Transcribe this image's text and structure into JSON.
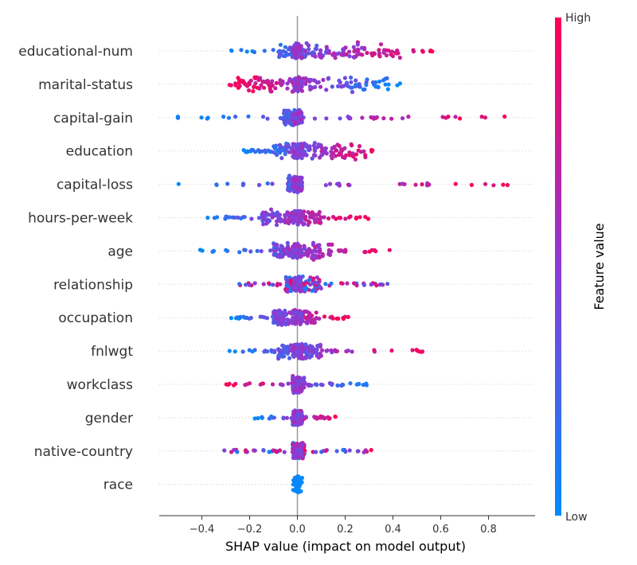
{
  "chart_data": {
    "type": "scatter",
    "subtype": "shap-beeswarm",
    "xlabel": "SHAP value (impact on model output)",
    "xlim": [
      -0.58,
      0.98
    ],
    "x_ticks": [
      "−0.4",
      "−0.2",
      "0.0",
      "0.2",
      "0.4",
      "0.6",
      "0.8"
    ],
    "x_tick_values": [
      -0.4,
      -0.2,
      0.0,
      0.2,
      0.4,
      0.6,
      0.8
    ],
    "grid": false,
    "colorbar": {
      "label": "Feature value",
      "high": "High",
      "low": "Low",
      "color_low": "#008bfb",
      "color_mid": "#8e3ad6",
      "color_high": "#ff0052"
    },
    "zero_line_color": "#999999",
    "features": [
      {
        "name": "educational-num",
        "x_min": -0.29,
        "x_max": 0.57,
        "dense_min": -0.08,
        "dense_max": 0.45,
        "pattern": "low-left"
      },
      {
        "name": "marital-status",
        "x_min": -0.29,
        "x_max": 0.44,
        "dense_min": -0.25,
        "dense_max": 0.38,
        "pattern": "high-left"
      },
      {
        "name": "capital-gain",
        "x_min": -0.52,
        "x_max": 0.91,
        "dense_min": -0.06,
        "dense_max": 0.02,
        "pattern": "low-left"
      },
      {
        "name": "education",
        "x_min": -0.23,
        "x_max": 0.36,
        "dense_min": -0.1,
        "dense_max": 0.3,
        "pattern": "low-left"
      },
      {
        "name": "capital-loss",
        "x_min": -0.52,
        "x_max": 0.91,
        "dense_min": -0.04,
        "dense_max": 0.02,
        "pattern": "low-left"
      },
      {
        "name": "hours-per-week",
        "x_min": -0.43,
        "x_max": 0.31,
        "dense_min": -0.15,
        "dense_max": 0.1,
        "pattern": "low-left"
      },
      {
        "name": "age",
        "x_min": -0.41,
        "x_max": 0.4,
        "dense_min": -0.1,
        "dense_max": 0.15,
        "pattern": "low-left"
      },
      {
        "name": "relationship",
        "x_min": -0.25,
        "x_max": 0.39,
        "dense_min": -0.05,
        "dense_max": 0.1,
        "pattern": "mixed"
      },
      {
        "name": "occupation",
        "x_min": -0.3,
        "x_max": 0.22,
        "dense_min": -0.1,
        "dense_max": 0.08,
        "pattern": "low-left"
      },
      {
        "name": "fnlwgt",
        "x_min": -0.31,
        "x_max": 0.53,
        "dense_min": -0.08,
        "dense_max": 0.1,
        "pattern": "low-left"
      },
      {
        "name": "workclass",
        "x_min": -0.3,
        "x_max": 0.31,
        "dense_min": -0.02,
        "dense_max": 0.03,
        "pattern": "high-left"
      },
      {
        "name": "gender",
        "x_min": -0.18,
        "x_max": 0.16,
        "dense_min": -0.02,
        "dense_max": 0.02,
        "pattern": "low-left"
      },
      {
        "name": "native-country",
        "x_min": -0.31,
        "x_max": 0.31,
        "dense_min": -0.02,
        "dense_max": 0.03,
        "pattern": "mixed"
      },
      {
        "name": "race",
        "x_min": -0.01,
        "x_max": 0.01,
        "dense_min": -0.005,
        "dense_max": 0.005,
        "pattern": "low-only"
      }
    ]
  }
}
